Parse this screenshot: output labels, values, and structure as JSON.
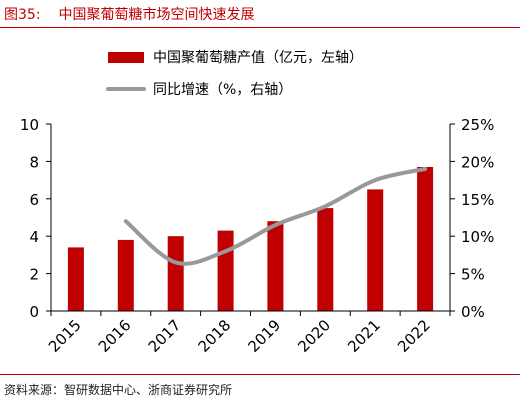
{
  "figure": {
    "number": "图35:",
    "title": "中国聚葡萄糖市场空间快速发展"
  },
  "source": "资料来源：智研数据中心、浙商证券研究所",
  "colors": {
    "bar": "#c00000",
    "line": "#999999",
    "accent": "#c00000",
    "axis": "#000000"
  },
  "chart_data": {
    "type": "bar",
    "categories": [
      "2015",
      "2016",
      "2017",
      "2018",
      "2019",
      "2020",
      "2021",
      "2022"
    ],
    "series": [
      {
        "name": "中国聚葡萄糖产值（亿元，左轴）",
        "type": "bar",
        "axis": "left",
        "values": [
          3.4,
          3.8,
          4.0,
          4.3,
          4.8,
          5.5,
          6.5,
          7.7
        ]
      },
      {
        "name": "同比增速（%，右轴）",
        "type": "line",
        "axis": "right",
        "values": [
          null,
          12,
          6.5,
          8,
          11.5,
          14,
          17.5,
          19
        ]
      }
    ],
    "y_left": {
      "min": 0,
      "max": 10,
      "ticks": [
        "0",
        "2",
        "4",
        "6",
        "8",
        "10"
      ]
    },
    "y_right": {
      "min": 0,
      "max": 25,
      "ticks": [
        "0%",
        "5%",
        "10%",
        "15%",
        "20%",
        "25%"
      ]
    },
    "legend_position": "top",
    "grid": false
  }
}
